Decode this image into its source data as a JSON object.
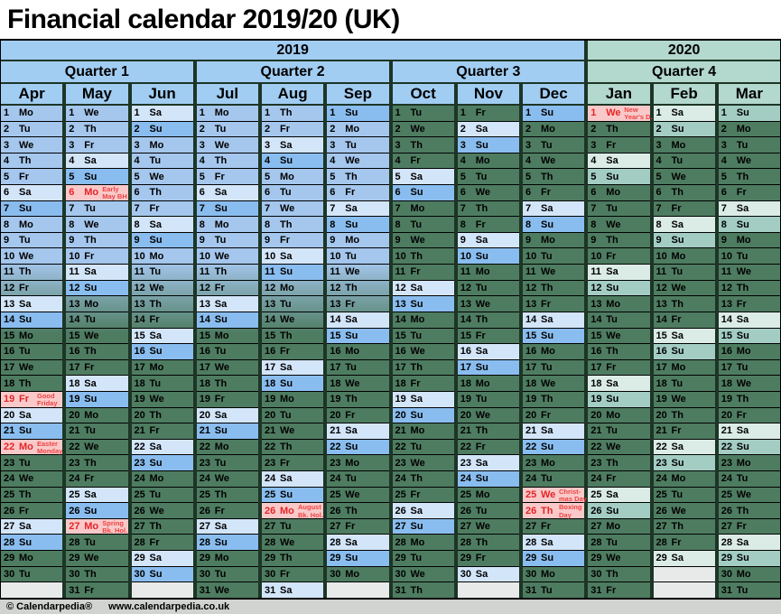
{
  "title": "Financial calendar 2019/20 (UK)",
  "table": {
    "years": [
      {
        "label": "2019",
        "months_span": 9
      },
      {
        "label": "2020",
        "months_span": 3
      }
    ],
    "quarters": [
      {
        "label": "Quarter 1",
        "year": "2019"
      },
      {
        "label": "Quarter 2",
        "year": "2019"
      },
      {
        "label": "Quarter 3",
        "year": "2019"
      },
      {
        "label": "Quarter 4",
        "year": "2020"
      }
    ],
    "months": [
      {
        "name": "Apr",
        "year": "2019",
        "num_days": 30,
        "weekdays": "Mo Tu We Th Fr Sa Su Mo Tu We Th Fr Sa Su Mo Tu We Th Fr Sa Su Mo Tu We Th Fr Sa Su Mo Tu"
      },
      {
        "name": "May",
        "year": "2019",
        "num_days": 31,
        "weekdays": "We Th Fr Sa Su Mo Tu We Th Fr Sa Su Mo Tu We Th Fr Sa Su Mo Tu We Th Fr Sa Su Mo Tu We Th Fr"
      },
      {
        "name": "Jun",
        "year": "2019",
        "num_days": 30,
        "weekdays": "Sa Su Mo Tu We Th Fr Sa Su Mo Tu We Th Fr Sa Su Mo Tu We Th Fr Sa Su Mo Tu We Th Fr Sa Su"
      },
      {
        "name": "Jul",
        "year": "2019",
        "num_days": 31,
        "weekdays": "Mo Tu We Th Fr Sa Su Mo Tu We Th Fr Sa Su Mo Tu We Th Fr Sa Su Mo Tu We Th Fr Sa Su Mo Tu We"
      },
      {
        "name": "Aug",
        "year": "2019",
        "num_days": 31,
        "weekdays": "Th Fr Sa Su Mo Tu We Th Fr Sa Su Mo Tu We Th Fr Sa Su Mo Tu We Th Fr Sa Su Mo Tu We Th Fr Sa"
      },
      {
        "name": "Sep",
        "year": "2019",
        "num_days": 30,
        "weekdays": "Su Mo Tu We Th Fr Sa Su Mo Tu We Th Fr Sa Su Mo Tu We Th Fr Sa Su Mo Tu We Th Fr Sa Su Mo"
      },
      {
        "name": "Oct",
        "year": "2019",
        "num_days": 31,
        "weekdays": "Tu We Th Fr Sa Su Mo Tu We Th Fr Sa Su Mo Tu We Th Fr Sa Su Mo Tu We Th Fr Sa Su Mo Tu We Th"
      },
      {
        "name": "Nov",
        "year": "2019",
        "num_days": 30,
        "weekdays": "Fr Sa Su Mo Tu We Th Fr Sa Su Mo Tu We Th Fr Sa Su Mo Tu We Th Fr Sa Su Mo Tu We Th Fr Sa"
      },
      {
        "name": "Dec",
        "year": "2019",
        "num_days": 31,
        "weekdays": "Su Mo Tu We Th Fr Sa Su Mo Tu We Th Fr Sa Su Mo Tu We Th Fr Sa Su Mo Tu We Th Fr Sa Su Mo Tu"
      },
      {
        "name": "Jan",
        "year": "2020",
        "num_days": 31,
        "weekdays": "We Th Fr Sa Su Mo Tu We Th Fr Sa Su Mo Tu We Th Fr Sa Su Mo Tu We Th Fr Sa Su Mo Tu We Th Fr"
      },
      {
        "name": "Feb",
        "year": "2020",
        "num_days": 29,
        "weekdays": "Sa Su Mo Tu We Th Fr Sa Su Mo Tu We Th Fr Sa Su Mo Tu We Th Fr Sa Su Mo Tu We Th Fr Sa"
      },
      {
        "name": "Mar",
        "year": "2020",
        "num_days": 31,
        "weekdays": "Su Mo Tu We Th Fr Sa Su Mo Tu We Th Fr Sa Su Mo Tu We Th Fr Sa Su Mo Tu We Th Fr Sa Su Mo Tu"
      }
    ],
    "holidays": [
      {
        "month": "Apr",
        "day": 19,
        "lines": [
          "Good",
          "Friday"
        ]
      },
      {
        "month": "Apr",
        "day": 22,
        "lines": [
          "Easter",
          "Monday"
        ]
      },
      {
        "month": "May",
        "day": 6,
        "lines": [
          "Early",
          "May BH"
        ]
      },
      {
        "month": "May",
        "day": 27,
        "lines": [
          "Spring",
          "Bk. Hol."
        ]
      },
      {
        "month": "Aug",
        "day": 26,
        "lines": [
          "August",
          "Bk. Hol."
        ]
      },
      {
        "month": "Dec",
        "day": 25,
        "lines": [
          "Christ-",
          "mas Day"
        ]
      },
      {
        "month": "Dec",
        "day": 26,
        "lines": [
          "Boxing",
          "Day"
        ]
      },
      {
        "month": "Jan",
        "day": 1,
        "lines": [
          "New",
          "Year's D."
        ]
      }
    ]
  },
  "footer": {
    "copyright": "© Calendarpedia®",
    "url": "www.calendarpedia.co.uk"
  },
  "palette": {
    "header_blue": "#a2cdf2",
    "header_green": "#b3d8ce",
    "weekday_blue": "#a5c7ed",
    "weekday_green": "#4e7c61",
    "saturday_blue": "#d3e5f9",
    "sunday_blue": "#8abdef",
    "saturday_green": "#dbece6",
    "sunday_green": "#a3cdc3",
    "holiday_pink": "#f9c9c9",
    "holiday_red": "#e52528",
    "holiday_red2": "#ee4444",
    "empty_gray": "#e8eaea",
    "grid_gap_green": "#1d3526",
    "footer_gray": "#d0d3d0",
    "page_white": "#ffffff"
  }
}
